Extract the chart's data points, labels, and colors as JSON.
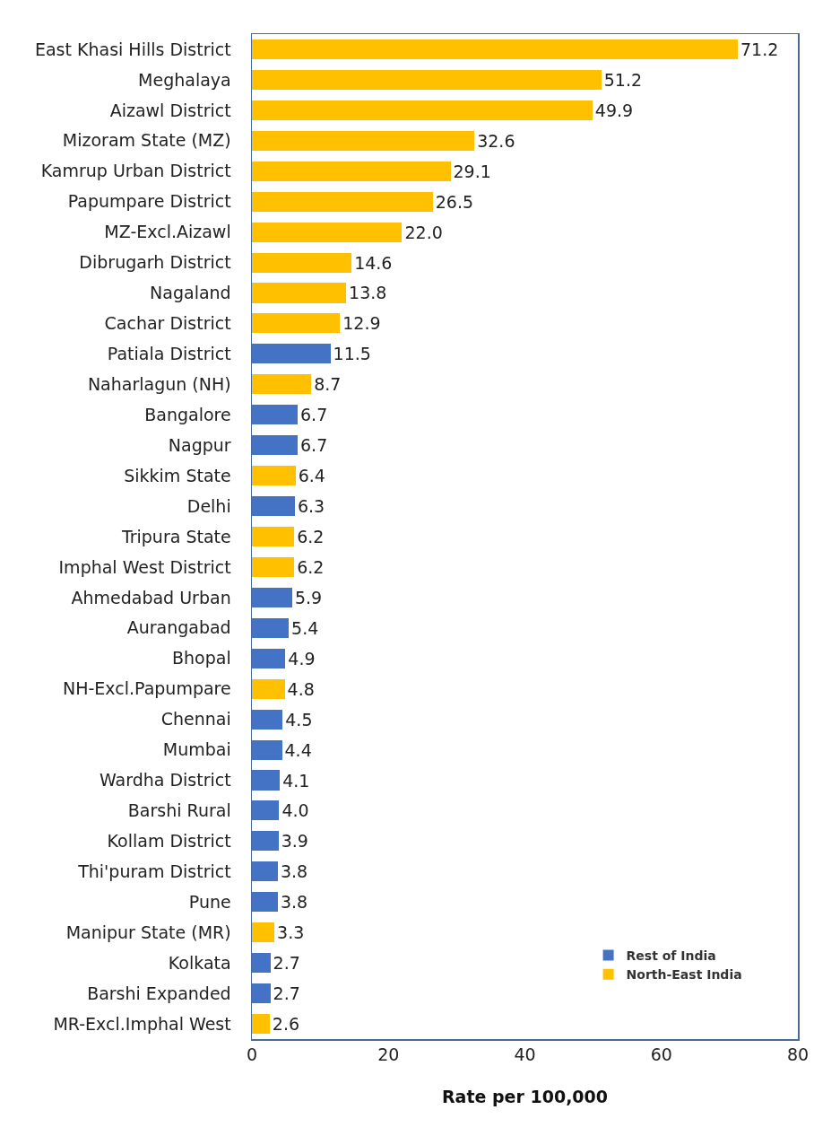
{
  "chart_data": {
    "type": "bar",
    "orientation": "horizontal",
    "stacked": true,
    "xlabel": "Rate per 100,000",
    "xlim": [
      0,
      80
    ],
    "xticks": [
      0,
      20,
      40,
      60,
      80
    ],
    "grid": false,
    "legend": "bottom right",
    "data_labels": true,
    "categories": [
      "East Khasi Hills District",
      "Meghalaya",
      "Aizawl District",
      "Mizoram State (MZ)",
      "Kamrup Urban District",
      "Papumpare District",
      "MZ-Excl.Aizawl",
      "Dibrugarh District",
      "Nagaland",
      "Cachar District",
      "Patiala District",
      "Naharlagun (NH)",
      "Bangalore",
      "Nagpur",
      "Sikkim State",
      "Delhi",
      "Tripura State",
      "Imphal West District",
      "Ahmedabad Urban",
      "Aurangabad",
      "Bhopal",
      "NH-Excl.Papumpare",
      "Chennai",
      "Mumbai",
      "Wardha District",
      "Barshi Rural",
      "Kollam District",
      "Thi'puram District",
      "Pune",
      "Manipur State (MR)",
      "Kolkata",
      "Barshi Expanded",
      "MR-Excl.Imphal West"
    ],
    "series": [
      {
        "name": "North-East India",
        "color": "#ffc000",
        "values": [
          71.2,
          51.2,
          49.9,
          32.6,
          29.1,
          26.5,
          22.0,
          14.6,
          13.8,
          12.9,
          null,
          8.7,
          null,
          null,
          6.4,
          null,
          6.2,
          6.2,
          null,
          null,
          null,
          4.8,
          null,
          null,
          null,
          null,
          null,
          null,
          null,
          3.3,
          null,
          null,
          2.6
        ],
        "value_labels": [
          "71.2",
          "51.2",
          "49.9",
          "32.6",
          "29.1",
          "26.5",
          "22.0",
          "14.6",
          "13.8",
          "12.9",
          null,
          "8.7",
          null,
          null,
          "6.4",
          null,
          "6.2",
          "6.2",
          null,
          null,
          null,
          "4.8",
          null,
          null,
          null,
          null,
          null,
          null,
          null,
          "3.3",
          null,
          null,
          "2.6"
        ]
      },
      {
        "name": "Rest of India",
        "color": "#4472c4",
        "values": [
          null,
          null,
          null,
          null,
          null,
          null,
          null,
          null,
          null,
          null,
          11.5,
          null,
          6.7,
          6.7,
          null,
          6.3,
          null,
          null,
          5.9,
          5.4,
          4.9,
          null,
          4.5,
          4.4,
          4.1,
          4.0,
          3.9,
          3.8,
          3.8,
          null,
          2.7,
          2.7,
          null
        ],
        "value_labels": [
          null,
          null,
          null,
          null,
          null,
          null,
          null,
          null,
          null,
          null,
          "11.5",
          null,
          "6.7",
          "6.7",
          null,
          "6.3",
          null,
          null,
          "5.9",
          "5.4",
          "4.9",
          null,
          "4.5",
          "4.4",
          "4.1",
          "4.0",
          "3.9",
          "3.8",
          "3.8",
          null,
          "2.7",
          "2.7",
          null
        ]
      }
    ]
  }
}
